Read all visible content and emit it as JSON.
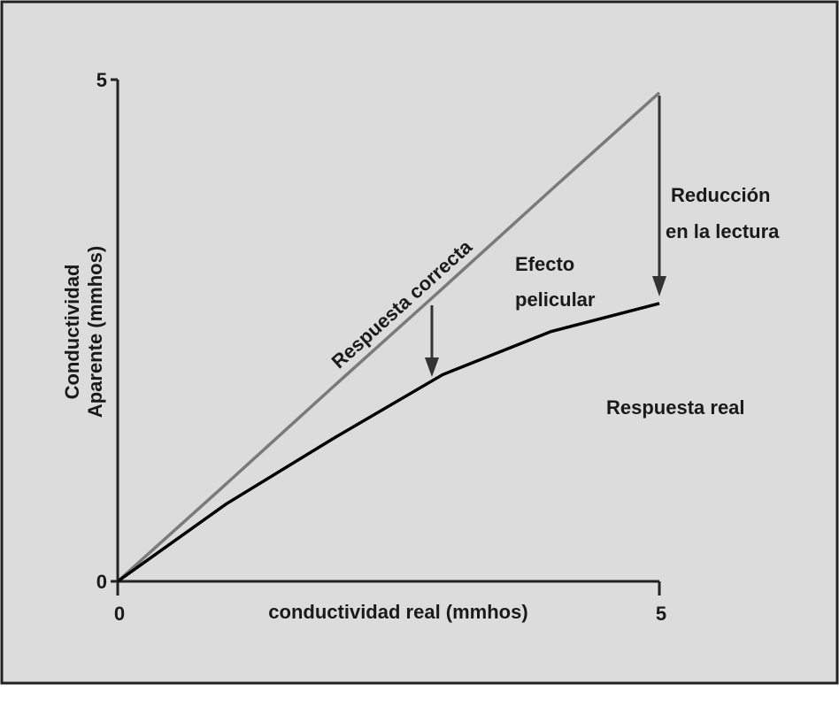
{
  "chart_data": {
    "type": "line",
    "xlabel": "conductividad real (mmhos)",
    "ylabel": [
      "Conductividad",
      "Aparente (mmhos)"
    ],
    "x": [
      0,
      1,
      2,
      3,
      4,
      5
    ],
    "series": [
      {
        "color": "#7a7a7a",
        "values": [
          0,
          0.97,
          1.95,
          2.92,
          3.9,
          4.87
        ]
      },
      {
        "color": "#000000",
        "values": [
          0,
          0.77,
          1.43,
          2.06,
          2.49,
          2.77
        ]
      }
    ],
    "xlim": [
      0,
      5
    ],
    "xticks": [
      0,
      5
    ],
    "ylim": [
      0,
      5
    ],
    "yticks": [
      0,
      5
    ],
    "annotations": {
      "correcta": "Respuesta correcta",
      "pelicular": [
        "Efecto",
        "pelicular"
      ],
      "reduccion": [
        "Reducción",
        "en la lectura"
      ],
      "real": "Respuesta real"
    }
  }
}
